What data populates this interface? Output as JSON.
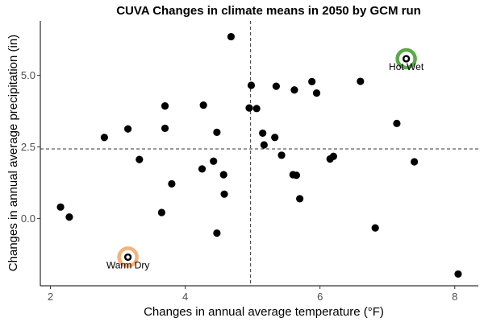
{
  "chart_data": {
    "type": "scatter",
    "title": "CUVA Changes in climate means in 2050 by GCM run",
    "xlabel": "Changes in annual average temperature (°F)",
    "ylabel": "Changes in annual average precipitation (in)",
    "xlim": [
      1.85,
      8.35
    ],
    "ylim": [
      -2.35,
      6.9
    ],
    "xticks": [
      2,
      4,
      6,
      8
    ],
    "xtick_labels": [
      "2",
      "4",
      "6",
      "8"
    ],
    "yticks": [
      0,
      2.5,
      5
    ],
    "ytick_labels": [
      "0.0",
      "2.5",
      "5.0"
    ],
    "grid": false,
    "ref_lines": {
      "x": 4.97,
      "y": 2.43
    },
    "point_color": "#000000",
    "points": [
      {
        "x": 2.15,
        "y": 0.4
      },
      {
        "x": 2.28,
        "y": 0.05
      },
      {
        "x": 2.8,
        "y": 2.83
      },
      {
        "x": 3.15,
        "y": 3.13
      },
      {
        "x": 3.32,
        "y": 2.06
      },
      {
        "x": 3.65,
        "y": 0.21
      },
      {
        "x": 3.7,
        "y": 3.15
      },
      {
        "x": 3.7,
        "y": 3.93
      },
      {
        "x": 3.8,
        "y": 1.21
      },
      {
        "x": 3.15,
        "y": -1.35
      },
      {
        "x": 4.25,
        "y": 1.73
      },
      {
        "x": 4.27,
        "y": 3.96
      },
      {
        "x": 4.42,
        "y": 2.0
      },
      {
        "x": 4.47,
        "y": 3.01
      },
      {
        "x": 4.47,
        "y": -0.51
      },
      {
        "x": 4.57,
        "y": 1.53
      },
      {
        "x": 4.58,
        "y": 0.85
      },
      {
        "x": 4.68,
        "y": 6.35
      },
      {
        "x": 4.95,
        "y": 3.86
      },
      {
        "x": 4.98,
        "y": 4.65
      },
      {
        "x": 5.06,
        "y": 3.84
      },
      {
        "x": 5.15,
        "y": 2.98
      },
      {
        "x": 5.17,
        "y": 2.57
      },
      {
        "x": 5.33,
        "y": 2.83
      },
      {
        "x": 5.35,
        "y": 4.62
      },
      {
        "x": 5.43,
        "y": 2.21
      },
      {
        "x": 5.6,
        "y": 1.53
      },
      {
        "x": 5.62,
        "y": 4.49
      },
      {
        "x": 5.65,
        "y": 1.51
      },
      {
        "x": 5.7,
        "y": 0.69
      },
      {
        "x": 5.88,
        "y": 4.78
      },
      {
        "x": 5.95,
        "y": 4.38
      },
      {
        "x": 6.15,
        "y": 2.08
      },
      {
        "x": 6.2,
        "y": 2.17
      },
      {
        "x": 6.6,
        "y": 4.79
      },
      {
        "x": 6.82,
        "y": -0.33
      },
      {
        "x": 7.14,
        "y": 3.32
      },
      {
        "x": 7.28,
        "y": 5.58
      },
      {
        "x": 7.4,
        "y": 1.98
      },
      {
        "x": 8.05,
        "y": -1.94
      }
    ],
    "highlights": [
      {
        "label": "Warm Dry",
        "x": 3.15,
        "y": -1.35,
        "color": "#f4b27a"
      },
      {
        "label": "Hot Wet",
        "x": 7.28,
        "y": 5.58,
        "color": "#5aaa4a"
      }
    ]
  }
}
